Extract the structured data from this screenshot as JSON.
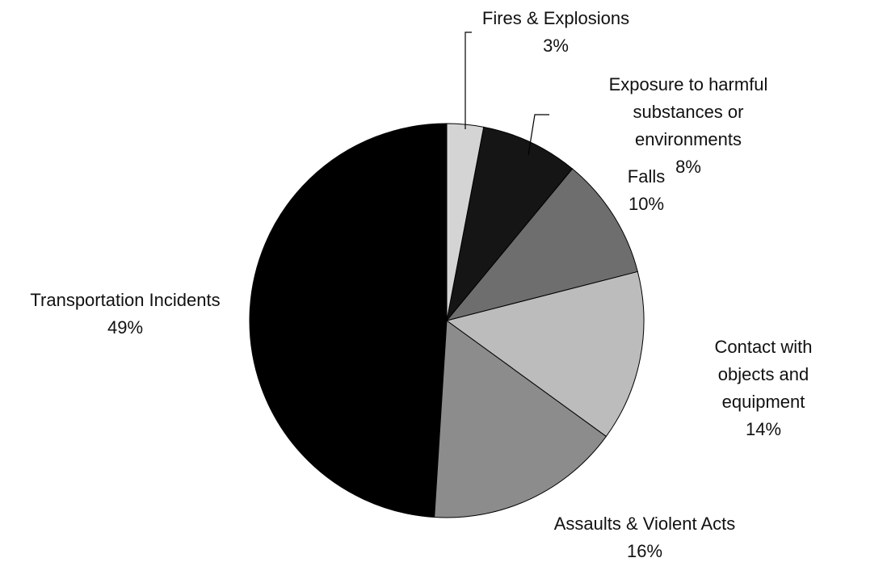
{
  "chart_data": {
    "type": "pie",
    "categories": [
      "Fires & Explosions",
      "Exposure to harmful\nsubstances or environments",
      "Falls",
      "Contact with objects and\nequipment",
      "Assaults & Violent Acts",
      "Transportation Incidents"
    ],
    "values": [
      3,
      8,
      10,
      14,
      16,
      49
    ],
    "value_labels": [
      "3%",
      "8%",
      "10%",
      "14%",
      "16%",
      "49%"
    ],
    "colors": [
      "#d4d4d4",
      "#151515",
      "#6e6e6e",
      "#bcbcbc",
      "#8c8c8c",
      "#000000"
    ]
  }
}
